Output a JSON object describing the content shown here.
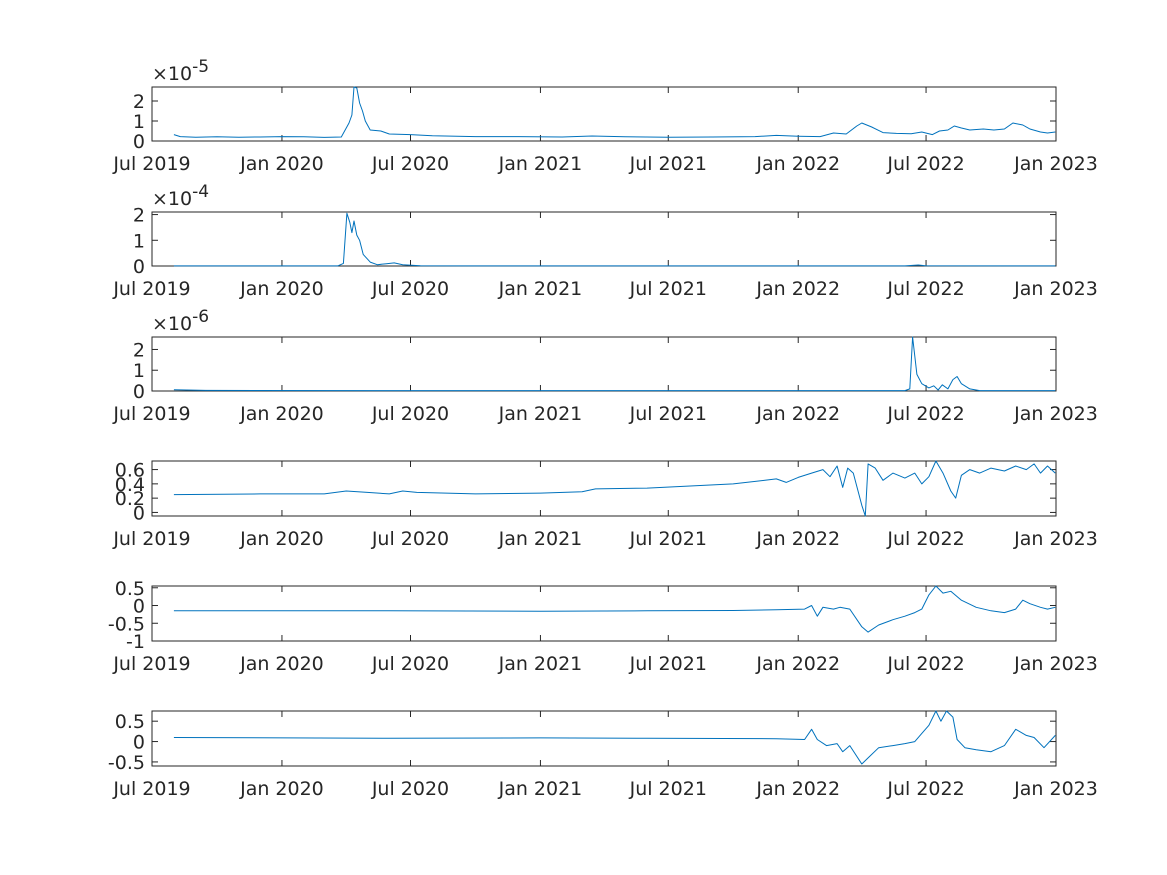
{
  "figure": {
    "background": "#ffffff",
    "axis_color": "#262626",
    "line_color": "#0072BD"
  },
  "chart_data": [
    {
      "type": "line",
      "x_ticks": [
        "Jul 2019",
        "Jan 2020",
        "Jul 2020",
        "Jan 2021",
        "Jul 2021",
        "Jan 2022",
        "Jul 2022",
        "Jan 2023"
      ],
      "y_ticks": [
        "0",
        "1",
        "2"
      ],
      "y_exponent_prefix": "×10",
      "y_exponent": "-5",
      "ylim": [
        0,
        2.7
      ],
      "grid": false,
      "series": [
        {
          "points": [
            [
              "2019-08-01",
              0.32
            ],
            [
              "2019-08-10",
              0.22
            ],
            [
              "2019-09-01",
              0.19
            ],
            [
              "2019-10-01",
              0.21
            ],
            [
              "2019-11-01",
              0.19
            ],
            [
              "2019-12-01",
              0.2
            ],
            [
              "2020-01-01",
              0.22
            ],
            [
              "2020-02-01",
              0.21
            ],
            [
              "2020-03-01",
              0.18
            ],
            [
              "2020-03-25",
              0.2
            ],
            [
              "2020-04-05",
              0.9
            ],
            [
              "2020-04-09",
              1.3
            ],
            [
              "2020-04-12",
              2.7
            ],
            [
              "2020-04-16",
              2.65
            ],
            [
              "2020-04-20",
              1.9
            ],
            [
              "2020-04-24",
              1.5
            ],
            [
              "2020-04-28",
              1.0
            ],
            [
              "2020-05-05",
              0.55
            ],
            [
              "2020-05-20",
              0.5
            ],
            [
              "2020-06-01",
              0.35
            ],
            [
              "2020-07-01",
              0.32
            ],
            [
              "2020-08-01",
              0.26
            ],
            [
              "2020-10-01",
              0.22
            ],
            [
              "2020-12-01",
              0.22
            ],
            [
              "2021-02-01",
              0.2
            ],
            [
              "2021-03-15",
              0.25
            ],
            [
              "2021-05-01",
              0.21
            ],
            [
              "2021-07-01",
              0.19
            ],
            [
              "2021-09-01",
              0.2
            ],
            [
              "2021-11-01",
              0.22
            ],
            [
              "2021-12-01",
              0.28
            ],
            [
              "2022-01-01",
              0.24
            ],
            [
              "2022-02-01",
              0.22
            ],
            [
              "2022-02-20",
              0.4
            ],
            [
              "2022-03-10",
              0.35
            ],
            [
              "2022-03-25",
              0.75
            ],
            [
              "2022-04-01",
              0.9
            ],
            [
              "2022-04-15",
              0.7
            ],
            [
              "2022-05-01",
              0.42
            ],
            [
              "2022-05-20",
              0.38
            ],
            [
              "2022-06-10",
              0.36
            ],
            [
              "2022-06-25",
              0.45
            ],
            [
              "2022-07-10",
              0.32
            ],
            [
              "2022-07-20",
              0.5
            ],
            [
              "2022-08-01",
              0.55
            ],
            [
              "2022-08-10",
              0.75
            ],
            [
              "2022-08-20",
              0.65
            ],
            [
              "2022-09-01",
              0.55
            ],
            [
              "2022-09-20",
              0.6
            ],
            [
              "2022-10-05",
              0.55
            ],
            [
              "2022-10-20",
              0.6
            ],
            [
              "2022-11-01",
              0.9
            ],
            [
              "2022-11-15",
              0.8
            ],
            [
              "2022-11-25",
              0.6
            ],
            [
              "2022-12-10",
              0.45
            ],
            [
              "2022-12-20",
              0.4
            ],
            [
              "2022-12-31",
              0.45
            ]
          ]
        }
      ]
    },
    {
      "type": "line",
      "x_ticks": [
        "Jul 2019",
        "Jan 2020",
        "Jul 2020",
        "Jan 2021",
        "Jul 2021",
        "Jan 2022",
        "Jul 2022",
        "Jan 2023"
      ],
      "y_ticks": [
        "0",
        "1",
        "2"
      ],
      "y_exponent_prefix": "×10",
      "y_exponent": "-4",
      "ylim": [
        0,
        2.1
      ],
      "grid": false,
      "series": [
        {
          "points": [
            [
              "2019-08-01",
              0.005
            ],
            [
              "2020-01-01",
              0.005
            ],
            [
              "2020-03-20",
              0.005
            ],
            [
              "2020-03-28",
              0.1
            ],
            [
              "2020-04-02",
              2.05
            ],
            [
              "2020-04-06",
              1.7
            ],
            [
              "2020-04-09",
              1.3
            ],
            [
              "2020-04-12",
              1.75
            ],
            [
              "2020-04-16",
              1.2
            ],
            [
              "2020-04-20",
              1.0
            ],
            [
              "2020-04-25",
              0.45
            ],
            [
              "2020-05-05",
              0.15
            ],
            [
              "2020-05-15",
              0.05
            ],
            [
              "2020-05-28",
              0.09
            ],
            [
              "2020-06-08",
              0.12
            ],
            [
              "2020-06-20",
              0.05
            ],
            [
              "2020-07-15",
              0.01
            ],
            [
              "2020-10-01",
              0.005
            ],
            [
              "2021-06-01",
              0.005
            ],
            [
              "2022-01-01",
              0.005
            ],
            [
              "2022-06-01",
              0.005
            ],
            [
              "2022-06-20",
              0.04
            ],
            [
              "2022-06-30",
              0.01
            ],
            [
              "2022-12-31",
              0.005
            ]
          ]
        }
      ]
    },
    {
      "type": "line",
      "x_ticks": [
        "Jul 2019",
        "Jan 2020",
        "Jul 2020",
        "Jan 2021",
        "Jul 2021",
        "Jan 2022",
        "Jul 2022",
        "Jan 2023"
      ],
      "y_ticks": [
        "0",
        "1",
        "2"
      ],
      "y_exponent_prefix": "×10",
      "y_exponent": "-6",
      "ylim": [
        0,
        2.6
      ],
      "grid": false,
      "series": [
        {
          "points": [
            [
              "2019-08-01",
              0.06
            ],
            [
              "2019-09-15",
              0.03
            ],
            [
              "2020-06-01",
              0.02
            ],
            [
              "2021-06-01",
              0.02
            ],
            [
              "2022-06-01",
              0.02
            ],
            [
              "2022-06-08",
              0.1
            ],
            [
              "2022-06-12",
              2.6
            ],
            [
              "2022-06-18",
              0.8
            ],
            [
              "2022-06-25",
              0.35
            ],
            [
              "2022-07-05",
              0.15
            ],
            [
              "2022-07-12",
              0.25
            ],
            [
              "2022-07-18",
              0.05
            ],
            [
              "2022-07-24",
              0.3
            ],
            [
              "2022-08-01",
              0.1
            ],
            [
              "2022-08-08",
              0.55
            ],
            [
              "2022-08-14",
              0.7
            ],
            [
              "2022-08-20",
              0.35
            ],
            [
              "2022-09-01",
              0.1
            ],
            [
              "2022-09-15",
              0.02
            ],
            [
              "2022-12-31",
              0.02
            ]
          ]
        }
      ]
    },
    {
      "type": "line",
      "x_ticks": [
        "Jul 2019",
        "Jan 2020",
        "Jul 2020",
        "Jan 2021",
        "Jul 2021",
        "Jan 2022",
        "Jul 2022",
        "Jan 2023"
      ],
      "y_ticks": [
        "0",
        "0.2",
        "0.4",
        "0.6"
      ],
      "ylim": [
        -0.05,
        0.72
      ],
      "grid": false,
      "series": [
        {
          "points": [
            [
              "2019-08-01",
              0.25
            ],
            [
              "2019-12-01",
              0.26
            ],
            [
              "2020-03-01",
              0.26
            ],
            [
              "2020-04-01",
              0.3
            ],
            [
              "2020-05-01",
              0.28
            ],
            [
              "2020-06-01",
              0.26
            ],
            [
              "2020-06-20",
              0.3
            ],
            [
              "2020-07-10",
              0.28
            ],
            [
              "2020-10-01",
              0.26
            ],
            [
              "2021-01-01",
              0.27
            ],
            [
              "2021-03-01",
              0.29
            ],
            [
              "2021-03-20",
              0.33
            ],
            [
              "2021-06-01",
              0.34
            ],
            [
              "2021-08-01",
              0.37
            ],
            [
              "2021-10-01",
              0.4
            ],
            [
              "2021-11-15",
              0.45
            ],
            [
              "2021-12-01",
              0.47
            ],
            [
              "2021-12-15",
              0.42
            ],
            [
              "2022-01-01",
              0.49
            ],
            [
              "2022-01-20",
              0.55
            ],
            [
              "2022-02-05",
              0.6
            ],
            [
              "2022-02-15",
              0.5
            ],
            [
              "2022-02-25",
              0.65
            ],
            [
              "2022-03-05",
              0.35
            ],
            [
              "2022-03-12",
              0.62
            ],
            [
              "2022-03-20",
              0.55
            ],
            [
              "2022-04-01",
              0.1
            ],
            [
              "2022-04-06",
              -0.05
            ],
            [
              "2022-04-10",
              0.68
            ],
            [
              "2022-04-20",
              0.62
            ],
            [
              "2022-05-01",
              0.45
            ],
            [
              "2022-05-15",
              0.55
            ],
            [
              "2022-06-01",
              0.48
            ],
            [
              "2022-06-15",
              0.55
            ],
            [
              "2022-06-25",
              0.4
            ],
            [
              "2022-07-05",
              0.5
            ],
            [
              "2022-07-15",
              0.72
            ],
            [
              "2022-07-25",
              0.55
            ],
            [
              "2022-08-05",
              0.3
            ],
            [
              "2022-08-12",
              0.2
            ],
            [
              "2022-08-20",
              0.52
            ],
            [
              "2022-09-01",
              0.6
            ],
            [
              "2022-09-15",
              0.55
            ],
            [
              "2022-10-01",
              0.62
            ],
            [
              "2022-10-20",
              0.58
            ],
            [
              "2022-11-05",
              0.65
            ],
            [
              "2022-11-20",
              0.6
            ],
            [
              "2022-12-01",
              0.68
            ],
            [
              "2022-12-10",
              0.55
            ],
            [
              "2022-12-20",
              0.65
            ],
            [
              "2022-12-31",
              0.55
            ]
          ]
        }
      ]
    },
    {
      "type": "line",
      "x_ticks": [
        "Jul 2019",
        "Jan 2020",
        "Jul 2020",
        "Jan 2021",
        "Jul 2021",
        "Jan 2022",
        "Jul 2022",
        "Jan 2023"
      ],
      "y_ticks": [
        "-1",
        "-0.5",
        "0",
        "0.5"
      ],
      "ylim": [
        -1,
        0.55
      ],
      "grid": false,
      "series": [
        {
          "points": [
            [
              "2019-08-01",
              -0.15
            ],
            [
              "2020-06-01",
              -0.15
            ],
            [
              "2021-01-01",
              -0.16
            ],
            [
              "2021-06-01",
              -0.15
            ],
            [
              "2021-10-01",
              -0.14
            ],
            [
              "2021-12-01",
              -0.12
            ],
            [
              "2022-01-10",
              -0.1
            ],
            [
              "2022-01-20",
              0.0
            ],
            [
              "2022-01-28",
              -0.3
            ],
            [
              "2022-02-05",
              -0.05
            ],
            [
              "2022-02-20",
              -0.1
            ],
            [
              "2022-03-01",
              -0.05
            ],
            [
              "2022-03-15",
              -0.1
            ],
            [
              "2022-04-01",
              -0.6
            ],
            [
              "2022-04-10",
              -0.75
            ],
            [
              "2022-04-25",
              -0.55
            ],
            [
              "2022-05-15",
              -0.4
            ],
            [
              "2022-06-01",
              -0.3
            ],
            [
              "2022-06-15",
              -0.2
            ],
            [
              "2022-06-25",
              -0.1
            ],
            [
              "2022-07-05",
              0.3
            ],
            [
              "2022-07-15",
              0.55
            ],
            [
              "2022-07-25",
              0.35
            ],
            [
              "2022-08-05",
              0.4
            ],
            [
              "2022-08-20",
              0.15
            ],
            [
              "2022-09-10",
              -0.05
            ],
            [
              "2022-10-01",
              -0.15
            ],
            [
              "2022-10-20",
              -0.2
            ],
            [
              "2022-11-05",
              -0.1
            ],
            [
              "2022-11-15",
              0.15
            ],
            [
              "2022-11-25",
              0.05
            ],
            [
              "2022-12-10",
              -0.05
            ],
            [
              "2022-12-20",
              -0.1
            ],
            [
              "2022-12-31",
              -0.05
            ]
          ]
        }
      ]
    },
    {
      "type": "line",
      "x_ticks": [
        "Jul 2019",
        "Jan 2020",
        "Jul 2020",
        "Jan 2021",
        "Jul 2021",
        "Jan 2022",
        "Jul 2022",
        "Jan 2023"
      ],
      "y_ticks": [
        "-0.5",
        "0",
        "0.5"
      ],
      "ylim": [
        -0.6,
        0.75
      ],
      "grid": false,
      "series": [
        {
          "points": [
            [
              "2019-08-01",
              0.1
            ],
            [
              "2020-06-01",
              0.08
            ],
            [
              "2021-01-01",
              0.09
            ],
            [
              "2021-06-01",
              0.08
            ],
            [
              "2021-12-01",
              0.07
            ],
            [
              "2022-01-10",
              0.05
            ],
            [
              "2022-01-20",
              0.3
            ],
            [
              "2022-01-28",
              0.05
            ],
            [
              "2022-02-10",
              -0.1
            ],
            [
              "2022-02-25",
              -0.05
            ],
            [
              "2022-03-05",
              -0.25
            ],
            [
              "2022-03-15",
              -0.1
            ],
            [
              "2022-04-01",
              -0.55
            ],
            [
              "2022-04-10",
              -0.4
            ],
            [
              "2022-04-25",
              -0.15
            ],
            [
              "2022-05-15",
              -0.1
            ],
            [
              "2022-06-01",
              -0.05
            ],
            [
              "2022-06-15",
              0.0
            ],
            [
              "2022-06-25",
              0.2
            ],
            [
              "2022-07-05",
              0.4
            ],
            [
              "2022-07-15",
              0.75
            ],
            [
              "2022-07-22",
              0.5
            ],
            [
              "2022-07-30",
              0.75
            ],
            [
              "2022-08-08",
              0.6
            ],
            [
              "2022-08-14",
              0.05
            ],
            [
              "2022-08-25",
              -0.15
            ],
            [
              "2022-09-10",
              -0.2
            ],
            [
              "2022-10-01",
              -0.25
            ],
            [
              "2022-10-20",
              -0.1
            ],
            [
              "2022-11-05",
              0.3
            ],
            [
              "2022-11-20",
              0.15
            ],
            [
              "2022-12-01",
              0.1
            ],
            [
              "2022-12-15",
              -0.15
            ],
            [
              "2022-12-31",
              0.15
            ]
          ]
        }
      ]
    }
  ]
}
